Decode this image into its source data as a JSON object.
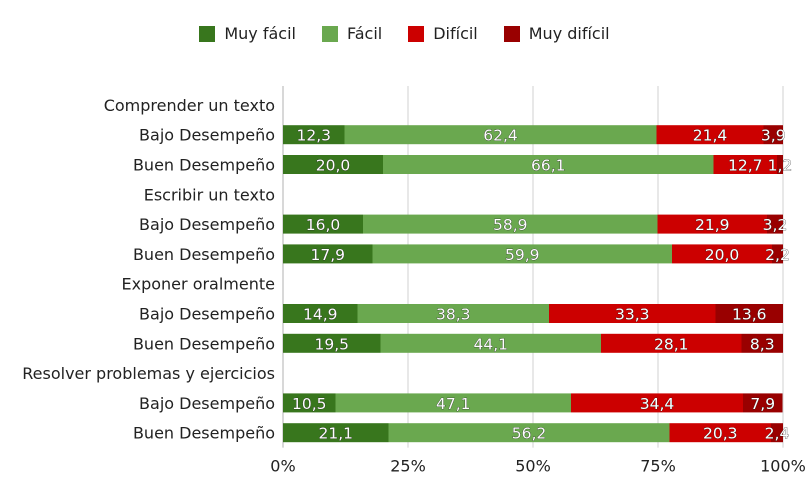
{
  "chart_data": {
    "type": "bar",
    "orientation": "horizontal",
    "stacked": "percent",
    "title": "",
    "xlabel": "",
    "ylabel": "",
    "xlim": [
      0,
      100
    ],
    "x_ticks": [
      "0%",
      "25%",
      "50%",
      "75%",
      "100%"
    ],
    "grid": "vertical",
    "legend_position": "top",
    "rows": [
      {
        "label": "Comprender un texto",
        "kind": "group"
      },
      {
        "label": "Bajo Desempeño",
        "kind": "bar"
      },
      {
        "label": "Buen Desempeño",
        "kind": "bar"
      },
      {
        "label": "Escribir un texto",
        "kind": "group"
      },
      {
        "label": "Bajo Desempeño",
        "kind": "bar"
      },
      {
        "label": "Buen Desempeño",
        "kind": "bar"
      },
      {
        "label": "Exponer oralmente",
        "kind": "group"
      },
      {
        "label": "Bajo Desempeño",
        "kind": "bar"
      },
      {
        "label": "Buen Desempeño",
        "kind": "bar"
      },
      {
        "label": "Resolver problemas y ejercicios",
        "kind": "group"
      },
      {
        "label": "Bajo Desempeño",
        "kind": "bar"
      },
      {
        "label": "Buen Desempeño",
        "kind": "bar"
      }
    ],
    "series": [
      {
        "name": "Muy fácil",
        "color": "#38761d",
        "values": [
          null,
          12.3,
          20.0,
          null,
          16.0,
          17.9,
          null,
          14.9,
          19.5,
          null,
          10.5,
          21.1
        ],
        "labels": [
          "",
          "12,3",
          "20,0",
          "",
          "16,0",
          "17,9",
          "",
          "14,9",
          "19,5",
          "",
          "10,5",
          "21,1"
        ]
      },
      {
        "name": "Fácil",
        "color": "#6aa84f",
        "values": [
          null,
          62.4,
          66.1,
          null,
          58.9,
          59.9,
          null,
          38.3,
          44.1,
          null,
          47.1,
          56.2
        ],
        "labels": [
          "",
          "62,4",
          "66,1",
          "",
          "58,9",
          "59,9",
          "",
          "38,3",
          "44,1",
          "",
          "47,1",
          "56,2"
        ]
      },
      {
        "name": "Difícil",
        "color": "#cc0000",
        "values": [
          null,
          21.4,
          12.7,
          null,
          21.9,
          20.0,
          null,
          33.3,
          28.1,
          null,
          34.4,
          20.3
        ],
        "labels": [
          "",
          "21,4",
          "12,7",
          "",
          "21,9",
          "20,0",
          "",
          "33,3",
          "28,1",
          "",
          "34,4",
          "20,3"
        ]
      },
      {
        "name": "Muy difícil",
        "color": "#990000",
        "values": [
          null,
          3.9,
          1.2,
          null,
          3.2,
          2.2,
          null,
          13.6,
          8.3,
          null,
          7.9,
          2.4
        ],
        "labels": [
          "",
          "3,9",
          "1,2",
          "",
          "3,2",
          "2,2",
          "",
          "13,6",
          "8,3",
          "",
          "7,9",
          "2,4"
        ]
      }
    ]
  }
}
